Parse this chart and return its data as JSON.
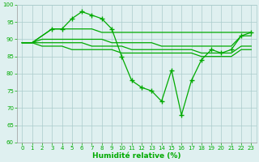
{
  "background_color": "#dff0f0",
  "grid_color": "#aacccc",
  "line_color": "#00aa00",
  "xlabel": "Humidité relative (%)",
  "xlabel_color": "#00aa00",
  "ylim": [
    60,
    100
  ],
  "xlim": [
    -0.5,
    23.5
  ],
  "yticks": [
    60,
    65,
    70,
    75,
    80,
    85,
    90,
    95,
    100
  ],
  "xticks": [
    0,
    1,
    2,
    3,
    4,
    5,
    6,
    7,
    8,
    9,
    10,
    11,
    12,
    13,
    14,
    15,
    16,
    17,
    18,
    19,
    20,
    21,
    22,
    23
  ],
  "series": {
    "main": {
      "x": [
        0,
        1,
        2,
        3,
        4,
        5,
        6,
        7,
        8,
        9,
        10,
        11,
        12,
        13,
        14,
        15,
        16,
        17,
        18,
        19,
        20,
        21,
        22,
        23
      ],
      "y": [
        89,
        89,
        91,
        93,
        93,
        96,
        98,
        97,
        96,
        93,
        85,
        78,
        76,
        75,
        72,
        81,
        68,
        78,
        84,
        87,
        86,
        87,
        91,
        92
      ],
      "markers": [
        3,
        4,
        5,
        6,
        7,
        8,
        9,
        10,
        11,
        12,
        13,
        14,
        15,
        16,
        17,
        18,
        19,
        20,
        21,
        22,
        23
      ]
    },
    "upper1": {
      "x": [
        0,
        1,
        2,
        3,
        4,
        5,
        6,
        7,
        8,
        9,
        10,
        11,
        12,
        13,
        14,
        15,
        16,
        17,
        18,
        19,
        20,
        21,
        22,
        23
      ],
      "y": [
        89,
        89,
        91,
        93,
        93,
        93,
        93,
        93,
        92,
        92,
        92,
        92,
        92,
        92,
        92,
        92,
        92,
        92,
        92,
        92,
        92,
        92,
        92,
        92
      ]
    },
    "upper2": {
      "x": [
        0,
        1,
        2,
        3,
        4,
        5,
        6,
        7,
        8,
        9,
        10,
        11,
        12,
        13,
        14,
        15,
        16,
        17,
        18,
        19,
        20,
        21,
        22,
        23
      ],
      "y": [
        89,
        89,
        90,
        90,
        90,
        90,
        90,
        90,
        90,
        89,
        89,
        89,
        89,
        89,
        88,
        88,
        88,
        88,
        88,
        88,
        88,
        88,
        91,
        91
      ]
    },
    "lower1": {
      "x": [
        0,
        1,
        2,
        3,
        4,
        5,
        6,
        7,
        8,
        9,
        10,
        11,
        12,
        13,
        14,
        15,
        16,
        17,
        18,
        19,
        20,
        21,
        22,
        23
      ],
      "y": [
        89,
        89,
        89,
        89,
        89,
        89,
        89,
        88,
        88,
        88,
        88,
        87,
        87,
        87,
        87,
        87,
        87,
        87,
        86,
        86,
        86,
        86,
        88,
        88
      ]
    },
    "lower2": {
      "x": [
        0,
        1,
        2,
        3,
        4,
        5,
        6,
        7,
        8,
        9,
        10,
        11,
        12,
        13,
        14,
        15,
        16,
        17,
        18,
        19,
        20,
        21,
        22,
        23
      ],
      "y": [
        89,
        89,
        88,
        88,
        88,
        87,
        87,
        87,
        87,
        87,
        86,
        86,
        86,
        86,
        86,
        86,
        86,
        86,
        85,
        85,
        85,
        85,
        87,
        87
      ]
    }
  }
}
